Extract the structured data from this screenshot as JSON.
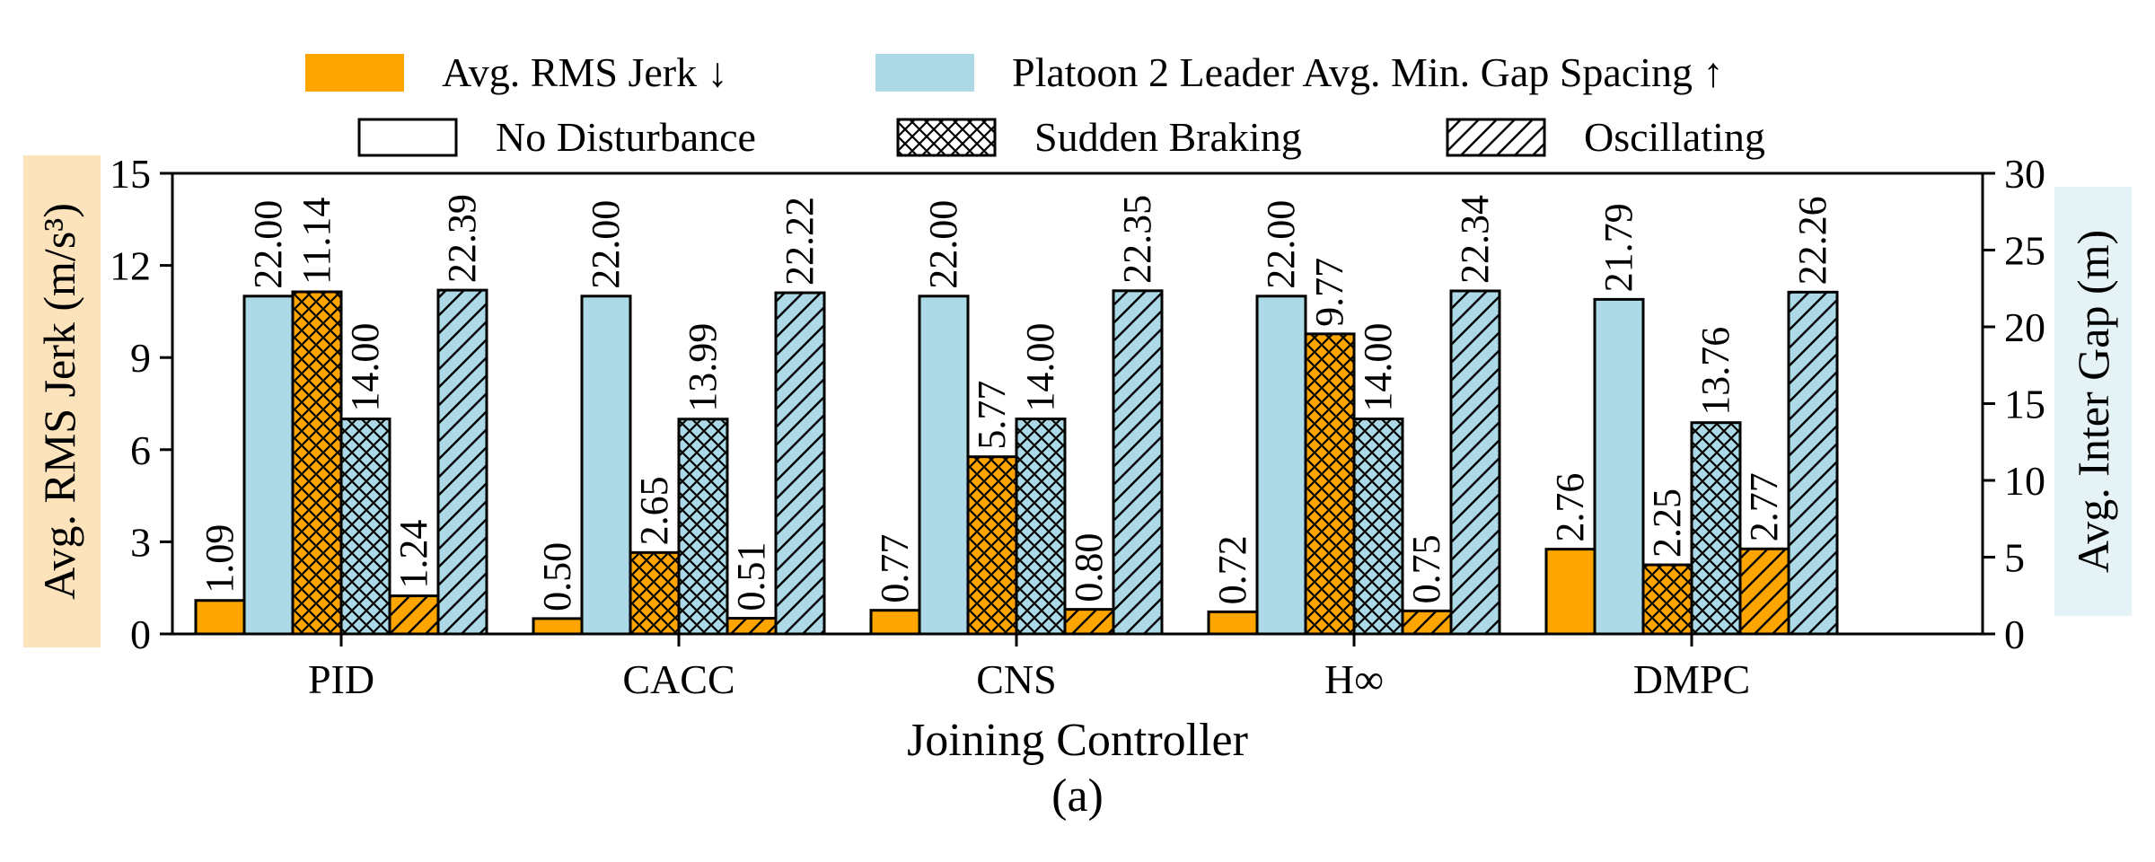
{
  "chart_data": {
    "type": "bar",
    "categories": [
      "PID",
      "CACC",
      "CNS",
      "H∞",
      "DMPC"
    ],
    "xlabel": "Joining Controller",
    "caption": "(a)",
    "y_left": {
      "label": "Avg. RMS Jerk (m/s³)",
      "ylim": [
        0,
        15
      ],
      "ticks": [
        "0",
        "3",
        "6",
        "9",
        "12",
        "15"
      ]
    },
    "y_right": {
      "label": "Avg. Inter Gap (m)",
      "ylim": [
        0,
        30
      ],
      "ticks": [
        "0",
        "5",
        "10",
        "15",
        "20",
        "25",
        "30"
      ]
    },
    "metrics": [
      {
        "legend_label": "Avg. RMS Jerk ↓",
        "axis": "left",
        "color": "#FFA500"
      },
      {
        "legend_label": "Platoon 2 Leader Avg. Min. Gap Spacing ↑",
        "axis": "right",
        "color": "#ADD8E6"
      }
    ],
    "scenarios": [
      {
        "legend_label": "No Disturbance",
        "hatch": "none"
      },
      {
        "legend_label": "Sudden Braking",
        "hatch": "crosshatch"
      },
      {
        "legend_label": "Oscillating",
        "hatch": "diagonal"
      }
    ],
    "series": [
      {
        "metric": 0,
        "scenario": 0,
        "values": [
          1.09,
          0.5,
          0.77,
          0.72,
          2.76
        ],
        "labels": [
          "1.09",
          "0.50",
          "0.77",
          "0.72",
          "2.76"
        ]
      },
      {
        "metric": 1,
        "scenario": 0,
        "values": [
          22.0,
          22.0,
          22.0,
          22.0,
          21.79
        ],
        "labels": [
          "22.00",
          "22.00",
          "22.00",
          "22.00",
          "21.79"
        ]
      },
      {
        "metric": 0,
        "scenario": 1,
        "values": [
          11.14,
          2.65,
          5.77,
          9.77,
          2.25
        ],
        "labels": [
          "11.14",
          "2.65",
          "5.77",
          "9.77",
          "2.25"
        ]
      },
      {
        "metric": 1,
        "scenario": 1,
        "values": [
          14.0,
          13.99,
          14.0,
          14.0,
          13.76
        ],
        "labels": [
          "14.00",
          "13.99",
          "14.00",
          "14.00",
          "13.76"
        ]
      },
      {
        "metric": 0,
        "scenario": 2,
        "values": [
          1.24,
          0.51,
          0.8,
          0.75,
          2.77
        ],
        "labels": [
          "1.24",
          "0.51",
          "0.80",
          "0.75",
          "2.77"
        ]
      },
      {
        "metric": 1,
        "scenario": 2,
        "values": [
          22.39,
          22.22,
          22.35,
          22.34,
          22.26
        ],
        "labels": [
          "22.39",
          "22.22",
          "22.35",
          "22.34",
          "22.26"
        ]
      }
    ],
    "legend_placement": "top",
    "grid": false
  }
}
